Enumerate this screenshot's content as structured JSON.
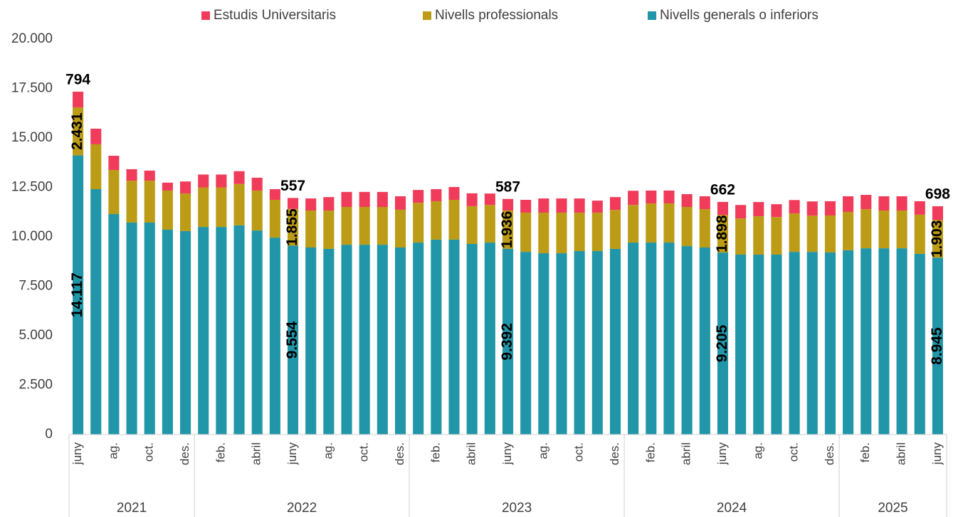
{
  "chart_data": {
    "type": "stacked_bar",
    "categories": [
      "juny",
      null,
      "ag.",
      null,
      "oct.",
      null,
      "des.",
      null,
      "feb.",
      null,
      "abril",
      null,
      "juny",
      null,
      "ag.",
      null,
      "oct.",
      null,
      "des.",
      null,
      "feb.",
      null,
      "abril",
      null,
      "juny",
      null,
      "ag.",
      null,
      "oct.",
      null,
      "des.",
      null,
      "feb.",
      null,
      "abril",
      null,
      "juny",
      null,
      "ag.",
      null,
      "oct.",
      null,
      "des.",
      null,
      "feb.",
      null,
      "abril",
      null,
      "juny"
    ],
    "groups": [
      {
        "label": "2021",
        "size": 7
      },
      {
        "label": "2022",
        "size": 12
      },
      {
        "label": "2023",
        "size": 12
      },
      {
        "label": "2024",
        "size": 12
      },
      {
        "label": "2025",
        "size": 6
      }
    ],
    "series": [
      {
        "name": "Estudis Universitaris",
        "color": "#f03c5a",
        "values": [
          794,
          790,
          720,
          580,
          510,
          400,
          610,
          650,
          650,
          650,
          650,
          540,
          557,
          610,
          680,
          760,
          760,
          760,
          680,
          650,
          610,
          650,
          650,
          580,
          587,
          650,
          720,
          720,
          720,
          610,
          650,
          720,
          650,
          650,
          650,
          650,
          662,
          680,
          720,
          650,
          680,
          720,
          720,
          790,
          720,
          720,
          720,
          680,
          698
        ],
        "value_labels": [
          "794",
          null,
          null,
          null,
          null,
          null,
          null,
          null,
          null,
          null,
          null,
          null,
          "557",
          null,
          null,
          null,
          null,
          null,
          null,
          null,
          null,
          null,
          null,
          null,
          "587",
          null,
          null,
          null,
          null,
          null,
          null,
          null,
          null,
          null,
          null,
          null,
          "662",
          null,
          null,
          null,
          null,
          null,
          null,
          null,
          null,
          null,
          null,
          null,
          "698"
        ]
      },
      {
        "name": "Nivells professionals",
        "color": "#bc9c16",
        "values": [
          2431,
          2270,
          2230,
          2120,
          2120,
          1980,
          1900,
          2000,
          2000,
          2090,
          2020,
          1910,
          1855,
          1870,
          1940,
          1910,
          1910,
          1910,
          1910,
          2010,
          1940,
          2010,
          1910,
          1900,
          1936,
          1980,
          2050,
          2050,
          1940,
          1940,
          1970,
          1900,
          1980,
          1980,
          1980,
          1940,
          1898,
          1830,
          1940,
          1900,
          1940,
          1830,
          1870,
          1940,
          1980,
          1910,
          1910,
          1980,
          1903
        ],
        "value_labels": [
          "2.431",
          null,
          null,
          null,
          null,
          null,
          null,
          null,
          null,
          null,
          null,
          null,
          "1.855",
          null,
          null,
          null,
          null,
          null,
          null,
          null,
          null,
          null,
          null,
          null,
          "1.936",
          null,
          null,
          null,
          null,
          null,
          null,
          null,
          null,
          null,
          null,
          null,
          "1.898",
          null,
          null,
          null,
          null,
          null,
          null,
          null,
          null,
          null,
          null,
          null,
          "1.903"
        ]
      },
      {
        "name": "Nivells generals o inferiors",
        "color": "#2196a8",
        "values": [
          14117,
          12410,
          11150,
          10720,
          10720,
          10360,
          10290,
          10500,
          10500,
          10580,
          10320,
          9960,
          9554,
          9460,
          9390,
          9600,
          9600,
          9600,
          9460,
          9710,
          9860,
          9860,
          9640,
          9710,
          9392,
          9240,
          9170,
          9170,
          9280,
          9280,
          9390,
          9710,
          9710,
          9710,
          9530,
          9460,
          9205,
          9100,
          9100,
          9100,
          9240,
          9240,
          9210,
          9320,
          9420,
          9420,
          9420,
          9140,
          8945
        ],
        "value_labels": [
          "14.117",
          null,
          null,
          null,
          null,
          null,
          null,
          null,
          null,
          null,
          null,
          null,
          "9.554",
          null,
          null,
          null,
          null,
          null,
          null,
          null,
          null,
          null,
          null,
          null,
          "9.392",
          null,
          null,
          null,
          null,
          null,
          null,
          null,
          null,
          null,
          null,
          null,
          "9.205",
          null,
          null,
          null,
          null,
          null,
          null,
          null,
          null,
          null,
          null,
          null,
          "8.945"
        ]
      }
    ],
    "ylim": [
      0,
      20000
    ],
    "yticks": [
      0,
      {
        "value": 2500,
        "label": "2.500"
      },
      {
        "value": 5000,
        "label": "5.000"
      },
      {
        "value": 7500,
        "label": "7.500"
      },
      {
        "value": 10000,
        "label": "10.000"
      },
      {
        "value": 12500,
        "label": "12.500"
      },
      {
        "value": 15000,
        "label": "15.000"
      },
      {
        "value": 17500,
        "label": "17.500"
      },
      {
        "value": 20000,
        "label": "20.000"
      }
    ],
    "grid": false,
    "legend": "top"
  }
}
